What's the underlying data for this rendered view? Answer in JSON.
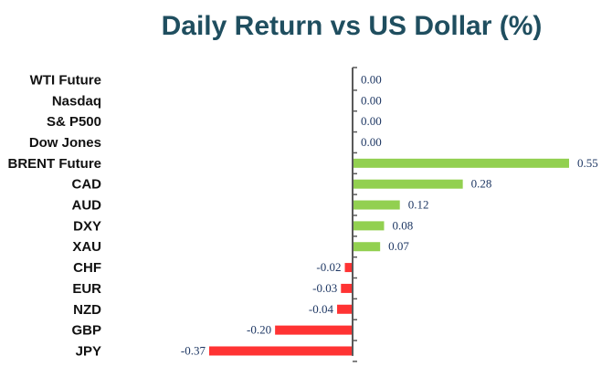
{
  "chart_data": {
    "type": "bar",
    "orientation": "horizontal",
    "title": "Daily Return vs US Dollar (%)",
    "categories": [
      "WTI Future",
      "Nasdaq",
      "S& P500",
      "Dow Jones",
      "BRENT Future",
      "CAD",
      "AUD",
      "DXY",
      "XAU",
      "CHF",
      "EUR",
      "NZD",
      "GBP",
      "JPY"
    ],
    "values": [
      0.0,
      0.0,
      0.0,
      0.0,
      0.55,
      0.28,
      0.12,
      0.08,
      0.07,
      -0.02,
      -0.03,
      -0.04,
      -0.2,
      -0.37
    ],
    "value_labels": [
      "0.00",
      "0.00",
      "0.00",
      "0.00",
      "0.55",
      "0.28",
      "0.12",
      "0.08",
      "0.07",
      "-0.02",
      "-0.03",
      "-0.04",
      "-0.20",
      "-0.37"
    ],
    "positive_color": "#92d050",
    "negative_color": "#ff3333",
    "xlim": [
      -0.37,
      0.55
    ],
    "grid": false,
    "legend": "none"
  }
}
